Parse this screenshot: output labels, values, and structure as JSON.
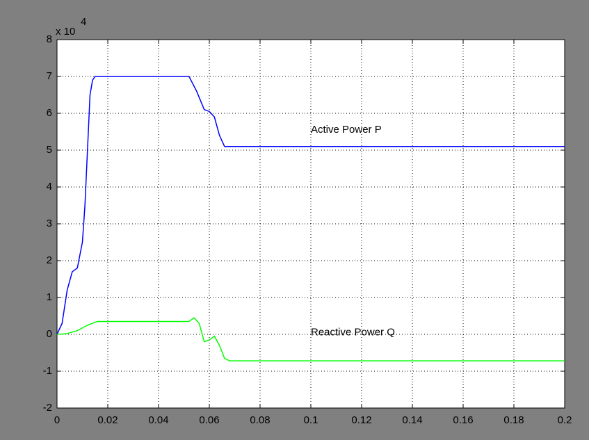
{
  "chart_data": {
    "type": "line",
    "y_multiplier": {
      "base": "x 10",
      "exponent": "4"
    },
    "annotations": [
      {
        "text": "Active Power P",
        "x": 0.1,
        "y": 5.55
      },
      {
        "text": "Reactive Power Q",
        "x": 0.1,
        "y": 0.05
      }
    ],
    "series": [
      {
        "name": "Active Power P",
        "color": "#0000ff",
        "x": [
          0,
          0.002,
          0.004,
          0.006,
          0.008,
          0.01,
          0.011,
          0.012,
          0.013,
          0.014,
          0.015,
          0.016,
          0.052,
          0.055,
          0.058,
          0.06,
          0.062,
          0.064,
          0.066,
          0.067,
          0.2
        ],
        "values": [
          0,
          0.3,
          1.2,
          1.7,
          1.8,
          2.5,
          3.5,
          5,
          6.5,
          6.9,
          7,
          7,
          7,
          6.6,
          6.1,
          6.05,
          5.9,
          5.4,
          5.1,
          5.1,
          5.1
        ]
      },
      {
        "name": "Reactive Power Q",
        "color": "#00ff00",
        "x": [
          0,
          0.004,
          0.008,
          0.012,
          0.016,
          0.052,
          0.054,
          0.056,
          0.058,
          0.06,
          0.062,
          0.064,
          0.066,
          0.068,
          0.2
        ],
        "values": [
          0,
          0.02,
          0.1,
          0.25,
          0.35,
          0.35,
          0.45,
          0.3,
          -0.2,
          -0.15,
          -0.05,
          -0.3,
          -0.65,
          -0.72,
          -0.72
        ]
      }
    ],
    "xlim": [
      0,
      0.2
    ],
    "xticks": [
      0,
      0.02,
      0.04,
      0.06,
      0.08,
      0.1,
      0.12,
      0.14,
      0.16,
      0.18,
      0.2
    ],
    "ylim": [
      -2,
      8
    ],
    "yticks": [
      -2,
      -1,
      0,
      1,
      2,
      3,
      4,
      5,
      6,
      7,
      8
    ],
    "grid": true
  }
}
